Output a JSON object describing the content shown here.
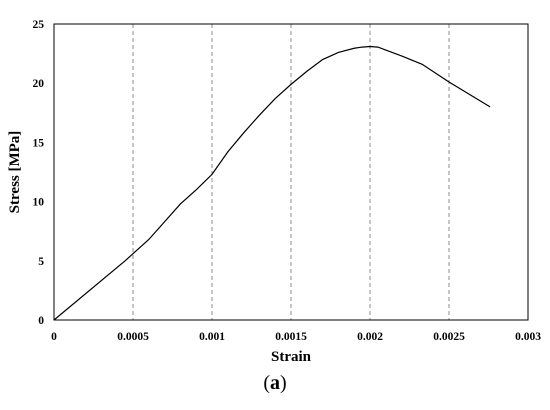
{
  "chart_data": {
    "type": "line",
    "xlabel": "Strain",
    "ylabel": "Stress [MPa]",
    "xlim": [
      0,
      0.003
    ],
    "ylim": [
      0,
      25
    ],
    "x_ticks": [
      "0",
      "0.0005",
      "0.001",
      "0.0015",
      "0.002",
      "0.0025",
      "0.003"
    ],
    "y_ticks": [
      "0",
      "5",
      "10",
      "15",
      "20",
      "25"
    ],
    "grid": "vertical dashed",
    "line_color": "#000000",
    "series": [
      {
        "x": [
          0,
          0.00045,
          0.0005,
          0.0006,
          0.0007,
          0.0008,
          0.0009,
          0.001,
          0.0011,
          0.0012,
          0.0013,
          0.0014,
          0.0015,
          0.0016,
          0.0017,
          0.0018,
          0.0019,
          0.00195,
          0.002,
          0.00205,
          0.0021,
          0.0022,
          0.00233,
          0.0025,
          0.00276
        ],
        "y": [
          0,
          5.0,
          5.6,
          6.8,
          8.3,
          9.8,
          11.0,
          12.3,
          14.2,
          15.8,
          17.3,
          18.7,
          19.9,
          21.0,
          22.0,
          22.6,
          22.95,
          23.05,
          23.1,
          23.05,
          22.8,
          22.3,
          21.6,
          20.1,
          18.0
        ]
      }
    ]
  },
  "caption": {
    "open": "(",
    "letter": "a",
    "close": ")"
  }
}
